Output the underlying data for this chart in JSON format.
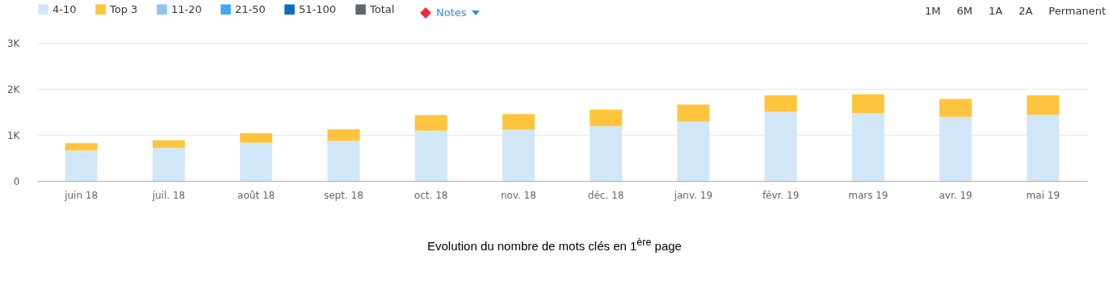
{
  "chart_data": {
    "type": "bar",
    "stacked": true,
    "title": "Evolution du nombre de mots clés en 1$^{ère}$ page",
    "categories": [
      "juin 18",
      "juil. 18",
      "août 18",
      "sept. 18",
      "oct. 18",
      "nov. 18",
      "déc. 18",
      "janv. 19",
      "févr. 19",
      "mars 19",
      "avr. 19",
      "mai 19"
    ],
    "series": [
      {
        "name": "4-10",
        "color": "#d1e7f7",
        "values": [
          660,
          720,
          830,
          870,
          1090,
          1110,
          1190,
          1290,
          1500,
          1470,
          1390,
          1440
        ]
      },
      {
        "name": "Top 3",
        "color": "#ffc43d",
        "values": [
          160,
          160,
          210,
          250,
          340,
          340,
          360,
          370,
          360,
          410,
          390,
          420
        ]
      },
      {
        "name": "11-20",
        "color": "#8fc3ef",
        "values": [
          null,
          null,
          null,
          null,
          null,
          null,
          null,
          null,
          null,
          null,
          null,
          null
        ]
      },
      {
        "name": "21-50",
        "color": "#45a6f2",
        "values": [
          null,
          null,
          null,
          null,
          null,
          null,
          null,
          null,
          null,
          null,
          null,
          null
        ]
      },
      {
        "name": "51-100",
        "color": "#0f6bbf",
        "values": [
          null,
          null,
          null,
          null,
          null,
          null,
          null,
          null,
          null,
          null,
          null,
          null
        ]
      },
      {
        "name": "Total",
        "color": "#5a6a70",
        "values": [
          null,
          null,
          null,
          null,
          null,
          null,
          null,
          null,
          null,
          null,
          null,
          null
        ]
      }
    ],
    "ylim": [
      0,
      3000
    ],
    "yticks": [
      0,
      {
        "value": 1000,
        "label": "1K"
      },
      {
        "value": 2000,
        "label": "2K"
      },
      {
        "value": 3000,
        "label": "3K"
      }
    ],
    "grid": "y",
    "legend": "top left",
    "annotations": [
      "Notes",
      "1M",
      "6M",
      "1A",
      "2A",
      "Permanent"
    ]
  }
}
